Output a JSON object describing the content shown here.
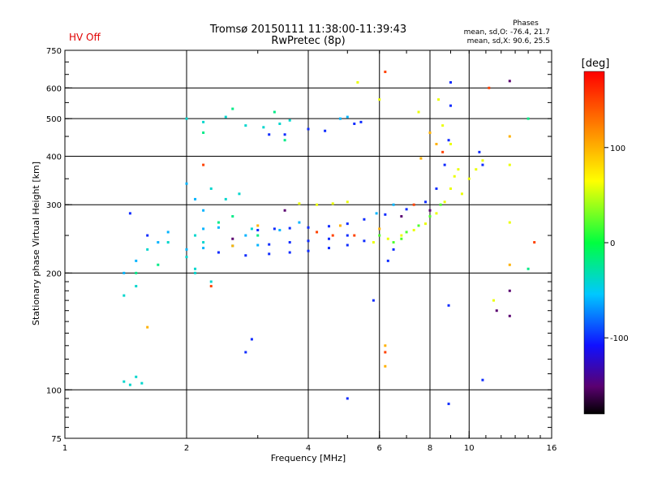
{
  "header": {
    "title": "Tromsø 20150111 11:38:00-11:39:43",
    "subtitle": "RwPretec (8p)",
    "status": "HV Off",
    "status_color": "#e00000",
    "phases_title": "Phases",
    "phases_line1": "mean, sd,O: -76.4, 21.7",
    "phases_line2": "mean, sd,X:  90.6, 25.5"
  },
  "chart_data": {
    "type": "scatter",
    "xlabel": "Frequency [MHz]",
    "ylabel": "Stationary phase Virtual Height [km]",
    "x_scale": "log2",
    "y_scale": "log",
    "xlim": [
      1,
      16
    ],
    "ylim": [
      75,
      750
    ],
    "x_ticks": [
      1,
      2,
      4,
      6,
      8,
      10,
      16
    ],
    "x_tick_labels": [
      "1",
      "2",
      "4",
      "6",
      "8",
      "10",
      "16"
    ],
    "y_ticks": [
      75,
      100,
      200,
      300,
      400,
      500,
      600,
      750
    ],
    "y_tick_labels": [
      "75",
      "100",
      "200",
      "300",
      "400",
      "500",
      "600",
      "750"
    ],
    "grid_x": [
      2,
      4,
      6,
      8,
      10
    ],
    "grid_y": [
      100,
      200,
      300,
      400,
      500,
      600
    ],
    "grid": true,
    "colorbar": {
      "label": "[deg]",
      "range": [
        -180,
        180
      ],
      "ticks": [
        -100,
        0,
        100
      ],
      "tick_labels": [
        "-100",
        "0",
        "100"
      ]
    },
    "series": [
      {
        "phase": -100,
        "points": [
          [
            3.0,
            258
          ],
          [
            3.3,
            260
          ],
          [
            3.6,
            261
          ],
          [
            4.0,
            262
          ],
          [
            4.5,
            264
          ],
          [
            5.0,
            268
          ],
          [
            5.5,
            275
          ],
          [
            6.2,
            283
          ],
          [
            7.0,
            292
          ],
          [
            7.8,
            305
          ],
          [
            8.3,
            330
          ],
          [
            8.7,
            380
          ],
          [
            8.9,
            440
          ],
          [
            9.0,
            540
          ],
          [
            9.0,
            620
          ],
          [
            3.2,
            237
          ],
          [
            3.6,
            240
          ],
          [
            4.0,
            242
          ],
          [
            4.5,
            245
          ],
          [
            5.0,
            250
          ],
          [
            2.4,
            226
          ],
          [
            2.8,
            222
          ],
          [
            3.2,
            224
          ],
          [
            3.6,
            226
          ],
          [
            4.0,
            228
          ],
          [
            4.5,
            232
          ],
          [
            5.0,
            236
          ],
          [
            5.5,
            242
          ],
          [
            3.2,
            455
          ],
          [
            3.5,
            455
          ],
          [
            4.0,
            470
          ],
          [
            4.4,
            465
          ],
          [
            5.2,
            485
          ],
          [
            5.4,
            490
          ],
          [
            1.45,
            285
          ],
          [
            1.6,
            250
          ],
          [
            10.6,
            410
          ],
          [
            10.8,
            380
          ],
          [
            2.9,
            135
          ],
          [
            2.8,
            125
          ],
          [
            5.8,
            170
          ],
          [
            10.8,
            106
          ],
          [
            5.0,
            95
          ],
          [
            8.9,
            92
          ],
          [
            8.9,
            165
          ],
          [
            6.3,
            215
          ],
          [
            6.5,
            230
          ]
        ]
      },
      {
        "phase": -60,
        "points": [
          [
            2.0,
            230
          ],
          [
            2.2,
            232
          ],
          [
            2.6,
            235
          ],
          [
            3.0,
            236
          ],
          [
            2.2,
            260
          ],
          [
            2.4,
            262
          ],
          [
            3.4,
            258
          ],
          [
            3.8,
            270
          ],
          [
            2.0,
            340
          ],
          [
            2.1,
            310
          ],
          [
            2.2,
            290
          ],
          [
            1.4,
            200
          ],
          [
            1.5,
            215
          ],
          [
            1.7,
            240
          ],
          [
            1.8,
            255
          ],
          [
            2.8,
            250
          ],
          [
            4.8,
            500
          ],
          [
            5.0,
            505
          ],
          [
            5.9,
            285
          ],
          [
            6.5,
            300
          ]
        ]
      },
      {
        "phase": -40,
        "points": [
          [
            2.0,
            500
          ],
          [
            2.2,
            490
          ],
          [
            2.5,
            505
          ],
          [
            2.8,
            480
          ],
          [
            3.1,
            475
          ],
          [
            3.4,
            485
          ],
          [
            3.6,
            495
          ],
          [
            2.1,
            250
          ],
          [
            2.2,
            240
          ],
          [
            2.0,
            220
          ],
          [
            2.1,
            205
          ],
          [
            1.4,
            105
          ],
          [
            1.45,
            103
          ],
          [
            1.55,
            104
          ],
          [
            1.5,
            108
          ],
          [
            1.4,
            175
          ],
          [
            1.5,
            185
          ],
          [
            1.6,
            230
          ],
          [
            2.3,
            330
          ],
          [
            2.5,
            310
          ],
          [
            2.7,
            320
          ],
          [
            2.9,
            260
          ],
          [
            2.3,
            190
          ],
          [
            2.1,
            200
          ],
          [
            1.8,
            240
          ]
        ]
      },
      {
        "phase": -20,
        "points": [
          [
            2.2,
            460
          ],
          [
            2.6,
            530
          ],
          [
            3.3,
            520
          ],
          [
            2.4,
            270
          ],
          [
            2.6,
            280
          ],
          [
            3.0,
            250
          ],
          [
            1.7,
            210
          ],
          [
            1.5,
            200
          ],
          [
            14.0,
            205
          ],
          [
            14.0,
            500
          ],
          [
            3.5,
            440
          ]
        ]
      },
      {
        "phase": 20,
        "points": [
          [
            6.0,
            250
          ],
          [
            6.5,
            240
          ],
          [
            7.0,
            255
          ],
          [
            7.5,
            265
          ],
          [
            8.0,
            280
          ],
          [
            8.5,
            300
          ],
          [
            6.8,
            245
          ]
        ]
      },
      {
        "phase": 60,
        "points": [
          [
            5.8,
            240
          ],
          [
            6.3,
            245
          ],
          [
            6.8,
            250
          ],
          [
            7.3,
            258
          ],
          [
            7.8,
            268
          ],
          [
            8.3,
            285
          ],
          [
            8.7,
            305
          ],
          [
            9.0,
            330
          ],
          [
            9.2,
            355
          ],
          [
            9.4,
            370
          ],
          [
            9.6,
            320
          ],
          [
            10.0,
            350
          ],
          [
            10.4,
            370
          ],
          [
            10.8,
            390
          ],
          [
            8.4,
            560
          ],
          [
            8.6,
            480
          ],
          [
            9.0,
            430
          ],
          [
            4.6,
            302
          ],
          [
            4.2,
            300
          ],
          [
            3.8,
            302
          ],
          [
            5.0,
            305
          ],
          [
            6.0,
            560
          ],
          [
            5.3,
            620
          ],
          [
            7.5,
            520
          ],
          [
            11.5,
            170
          ],
          [
            12.6,
            380
          ],
          [
            12.6,
            270
          ]
        ]
      },
      {
        "phase": 100,
        "points": [
          [
            1.6,
            145
          ],
          [
            2.6,
            235
          ],
          [
            3.0,
            265
          ],
          [
            4.8,
            265
          ],
          [
            6.0,
            260
          ],
          [
            6.2,
            130
          ],
          [
            6.2,
            115
          ],
          [
            7.6,
            395
          ],
          [
            8.0,
            460
          ],
          [
            8.3,
            430
          ],
          [
            12.6,
            450
          ],
          [
            12.6,
            210
          ]
        ]
      },
      {
        "phase": 150,
        "points": [
          [
            4.6,
            250
          ],
          [
            4.2,
            255
          ],
          [
            5.2,
            250
          ],
          [
            6.2,
            660
          ],
          [
            2.3,
            185
          ],
          [
            6.2,
            125
          ],
          [
            2.2,
            380
          ],
          [
            8.6,
            410
          ],
          [
            11.2,
            600
          ],
          [
            14.5,
            240
          ],
          [
            7.3,
            300
          ]
        ]
      },
      {
        "phase": -150,
        "points": [
          [
            12.6,
            625
          ],
          [
            12.6,
            180
          ],
          [
            12.6,
            155
          ],
          [
            11.7,
            160
          ],
          [
            6.8,
            280
          ],
          [
            3.5,
            290
          ],
          [
            2.6,
            245
          ],
          [
            8.0,
            290
          ]
        ]
      }
    ]
  }
}
